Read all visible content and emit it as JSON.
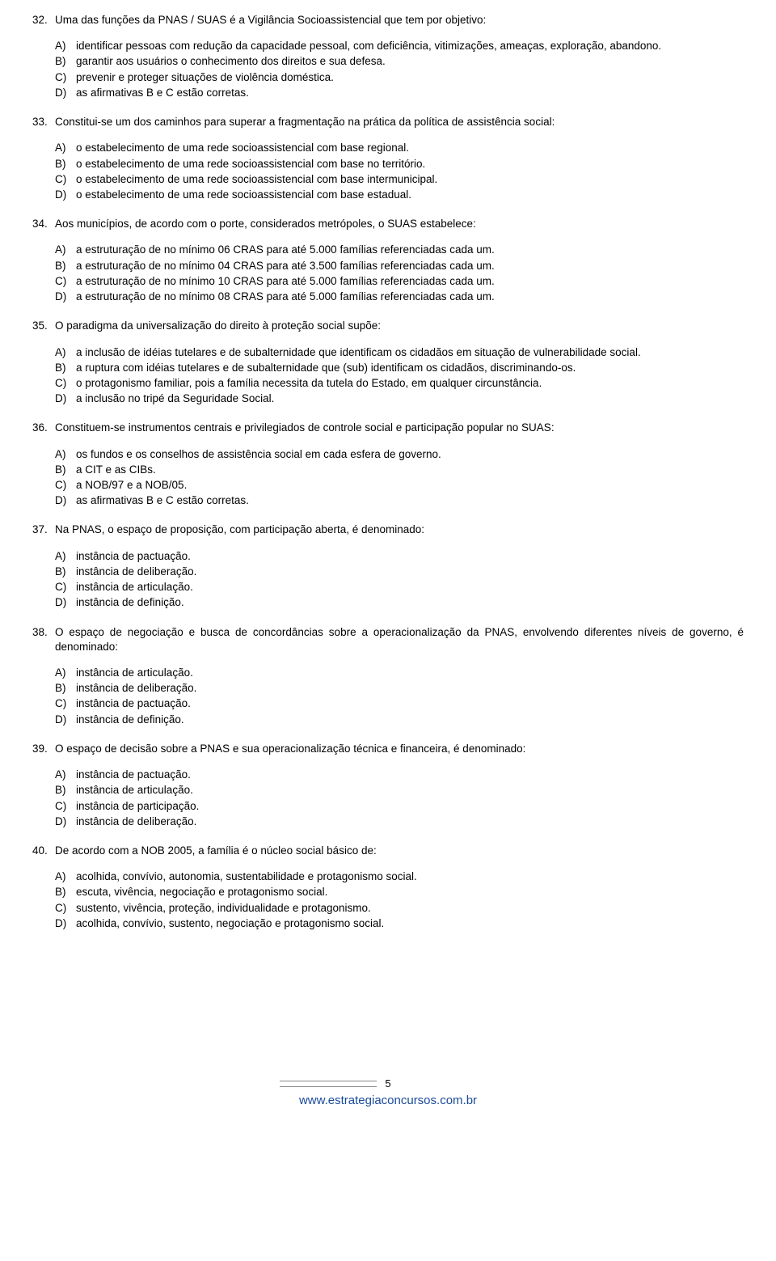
{
  "questions": [
    {
      "num": "32.",
      "text": "Uma das funções da PNAS / SUAS é a Vigilância Socioassistencial que tem por objetivo:",
      "options": [
        {
          "l": "A)",
          "t": "identificar pessoas com redução da capacidade pessoal, com deficiência, vitimizações, ameaças, exploração, abandono."
        },
        {
          "l": "B)",
          "t": "garantir aos usuários o conhecimento dos direitos e sua defesa."
        },
        {
          "l": "C)",
          "t": "prevenir e proteger situações de violência doméstica."
        },
        {
          "l": "D)",
          "t": "as afirmativas B e C estão corretas."
        }
      ]
    },
    {
      "num": "33.",
      "text": "Constitui-se um dos caminhos para superar a fragmentação na prática da política de assistência social:",
      "options": [
        {
          "l": "A)",
          "t": "o estabelecimento de uma rede socioassistencial com base regional."
        },
        {
          "l": "B)",
          "t": "o estabelecimento de uma rede socioassistencial com base no território."
        },
        {
          "l": "C)",
          "t": "o estabelecimento de uma rede socioassistencial com base intermunicipal."
        },
        {
          "l": "D)",
          "t": "o estabelecimento de uma rede socioassistencial com base estadual."
        }
      ]
    },
    {
      "num": "34.",
      "text": "Aos municípios, de acordo com o porte, considerados metrópoles, o SUAS estabelece:",
      "options": [
        {
          "l": "A)",
          "t": "a estruturação de no mínimo 06  CRAS para até 5.000  famílias referenciadas cada um."
        },
        {
          "l": "B)",
          "t": "a estruturação de no mínimo 04  CRAS para até 3.500  famílias referenciadas cada um."
        },
        {
          "l": "C)",
          "t": "a estruturação de no mínimo 10  CRAS para até 5.000  famílias referenciadas cada um."
        },
        {
          "l": "D)",
          "t": "a estruturação de no mínimo 08 CRAS para até 5.000 famílias referenciadas cada um."
        }
      ]
    },
    {
      "num": "35.",
      "text": "O paradigma da universalização do direito à proteção social supõe:",
      "options": [
        {
          "l": "A)",
          "t": "a inclusão de idéias tutelares e de subalternidade que identificam os cidadãos em situação de vulnerabilidade social."
        },
        {
          "l": "B)",
          "t": "a ruptura com idéias tutelares e de subalternidade que (sub) identificam os cidadãos, discriminando-os."
        },
        {
          "l": "C)",
          "t": "o protagonismo familiar, pois a família necessita da tutela do Estado, em qualquer circunstância."
        },
        {
          "l": "D)",
          "t": "a inclusão no tripé da Seguridade Social."
        }
      ]
    },
    {
      "num": "36.",
      "text": "Constituem-se instrumentos centrais e privilegiados de controle social e participação popular no SUAS:",
      "options": [
        {
          "l": "A)",
          "t": "os fundos e os conselhos de assistência social em cada esfera de governo."
        },
        {
          "l": "B)",
          "t": "a CIT e as CIBs."
        },
        {
          "l": "C)",
          "t": "a NOB/97 e a NOB/05."
        },
        {
          "l": "D)",
          "t": "as afirmativas B e C estão corretas."
        }
      ]
    },
    {
      "num": "37.",
      "text": "Na PNAS, o espaço de proposição, com participação aberta, é denominado:",
      "options": [
        {
          "l": "A)",
          "t": "instância de pactuação."
        },
        {
          "l": "B)",
          "t": "instância de deliberação."
        },
        {
          "l": "C)",
          "t": "instância de articulação."
        },
        {
          "l": "D)",
          "t": "instância de definição."
        }
      ]
    },
    {
      "num": "38.",
      "text": "O espaço de negociação e busca de concordâncias sobre a operacionalização da PNAS, envolvendo diferentes níveis de governo, é denominado:",
      "options": [
        {
          "l": "A)",
          "t": "instância de articulação."
        },
        {
          "l": "B)",
          "t": "instância de deliberação."
        },
        {
          "l": "C)",
          "t": "instância de pactuação."
        },
        {
          "l": "D)",
          "t": "instância de definição."
        }
      ]
    },
    {
      "num": "39.",
      "text": "O espaço de decisão sobre a PNAS e sua operacionalização técnica e financeira, é denominado:",
      "options": [
        {
          "l": "A)",
          "t": "instância de pactuação."
        },
        {
          "l": "B)",
          "t": "instância de articulação."
        },
        {
          "l": "C)",
          "t": "instância de participação."
        },
        {
          "l": "D)",
          "t": "instância de deliberação."
        }
      ]
    },
    {
      "num": "40.",
      "text": "De acordo com a NOB 2005, a família é o núcleo social básico de:",
      "options": [
        {
          "l": "A)",
          "t": "acolhida, convívio, autonomia, sustentabilidade e protagonismo social."
        },
        {
          "l": "B)",
          "t": "escuta, vivência, negociação e protagonismo social."
        },
        {
          "l": "C)",
          "t": "sustento, vivência, proteção, individualidade e protagonismo."
        },
        {
          "l": "D)",
          "t": "acolhida, convívio, sustento, negociação e protagonismo social."
        }
      ]
    }
  ],
  "footer": {
    "page": "5",
    "url": "www.estrategiaconcursos.com.br",
    "url_color": "#1a4b9b"
  }
}
